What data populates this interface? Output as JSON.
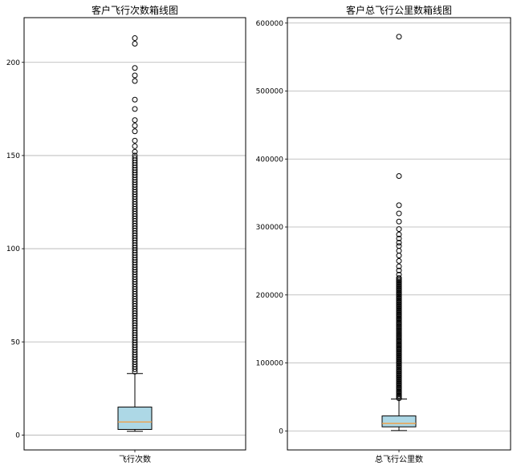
{
  "chart_data": [
    {
      "type": "box",
      "title": "客户飞行次数箱线图",
      "xlabel": "",
      "ylabel": "",
      "ylim": [
        -8,
        224
      ],
      "yticks": [
        0,
        50,
        100,
        150,
        200
      ],
      "grid": "horizontal",
      "box_color": "#add8e6",
      "median_color": "#f39c3c",
      "series": [
        {
          "name": "飞行次数",
          "whisker_low": 2,
          "q1": 3,
          "median": 7,
          "q3": 15,
          "whisker_high": 33,
          "outliers_dense_range": [
            34,
            150
          ],
          "outliers": [
            152,
            155,
            158,
            163,
            166,
            169,
            175,
            180,
            190,
            193,
            197,
            210,
            213
          ]
        }
      ]
    },
    {
      "type": "box",
      "title": "客户总飞行公里数箱线图",
      "xlabel": "",
      "ylabel": "",
      "ylim": [
        -28000,
        608000
      ],
      "yticks": [
        0,
        100000,
        200000,
        300000,
        400000,
        500000,
        600000
      ],
      "grid": "horizontal",
      "box_color": "#add8e6",
      "median_color": "#f39c3c",
      "series": [
        {
          "name": "总飞行公里数",
          "whisker_low": 400,
          "q1": 6000,
          "median": 11000,
          "q3": 22000,
          "whisker_high": 47000,
          "outliers_dense_range": [
            48000,
            225000
          ],
          "outliers": [
            230000,
            236000,
            242000,
            250000,
            258000,
            265000,
            272000,
            277000,
            283000,
            289000,
            297000,
            308000,
            320000,
            332000,
            375000,
            580000
          ]
        }
      ]
    }
  ]
}
